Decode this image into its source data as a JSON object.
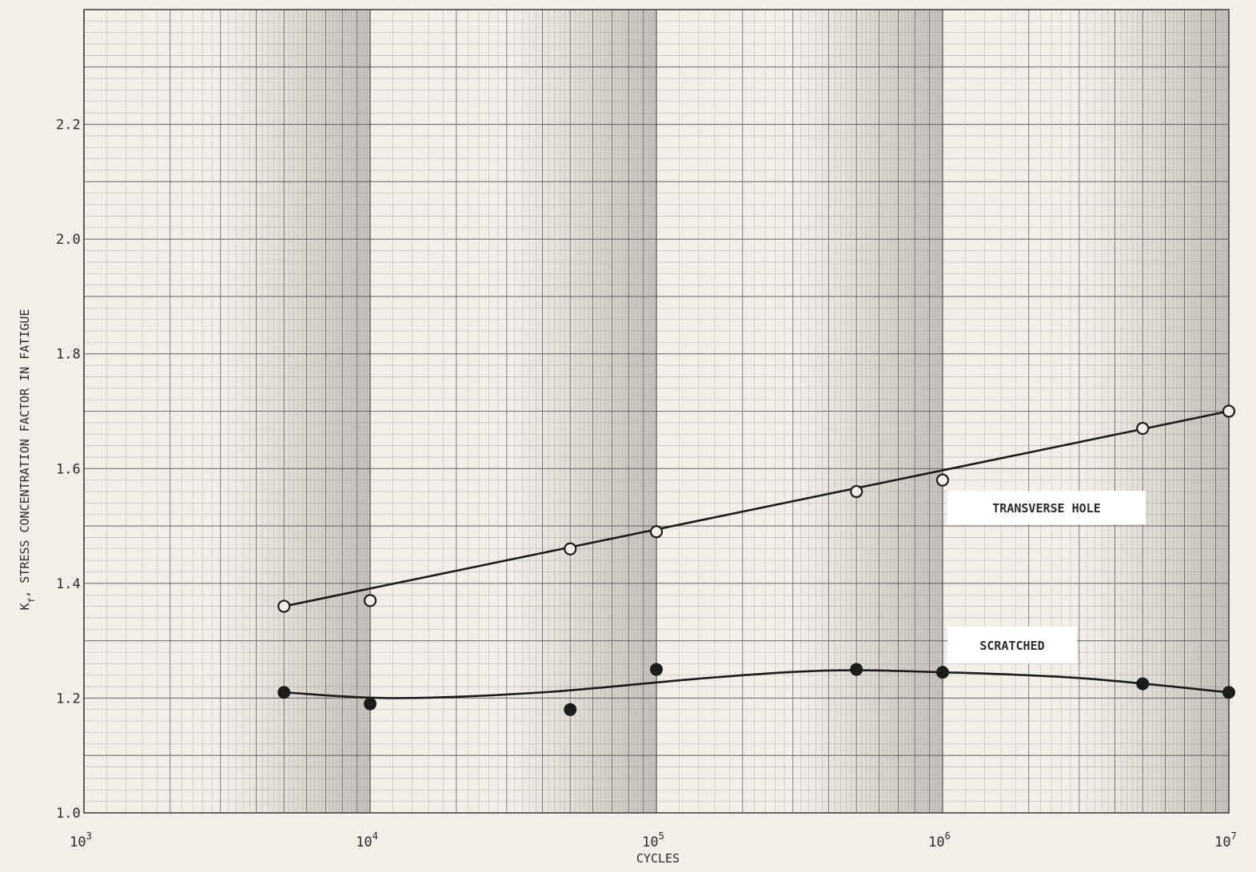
{
  "chart_data": {
    "type": "line",
    "title": "",
    "xlabel": "CYCLES",
    "ylabel": "K_f, STRESS CONCENTRATION FACTOR IN FATIGUE",
    "ylabel_parts": {
      "symbol_main": "K",
      "symbol_sub": "f",
      "text": ", STRESS CONCENTRATION FACTOR IN FATIGUE"
    },
    "x_scale": "log",
    "xlim": [
      1000,
      10000000
    ],
    "ylim": [
      1.0,
      2.4
    ],
    "grid": true,
    "x_ticks": [
      {
        "base": "10",
        "exp": "3",
        "value": 1000
      },
      {
        "base": "10",
        "exp": "4",
        "value": 10000
      },
      {
        "base": "10",
        "exp": "5",
        "value": 100000
      },
      {
        "base": "10",
        "exp": "6",
        "value": 1000000
      },
      {
        "base": "10",
        "exp": "7",
        "value": 10000000
      }
    ],
    "y_ticks": [
      {
        "label": "1.0",
        "value": 1.0
      },
      {
        "label": "1.2",
        "value": 1.2
      },
      {
        "label": "1.4",
        "value": 1.4
      },
      {
        "label": "1.6",
        "value": 1.6
      },
      {
        "label": "1.8",
        "value": 1.8
      },
      {
        "label": "2.0",
        "value": 2.0
      },
      {
        "label": "2.2",
        "value": 2.2
      }
    ],
    "series": [
      {
        "name": "TRANSVERSE HOLE",
        "marker": "open-circle",
        "points": [
          {
            "x": 5000,
            "y": 1.36
          },
          {
            "x": 10000,
            "y": 1.37
          },
          {
            "x": 50000,
            "y": 1.46
          },
          {
            "x": 100000,
            "y": 1.49
          },
          {
            "x": 500000,
            "y": 1.56
          },
          {
            "x": 1000000,
            "y": 1.58
          },
          {
            "x": 5000000,
            "y": 1.67
          },
          {
            "x": 10000000,
            "y": 1.7
          }
        ],
        "curve": [
          {
            "x": 5000,
            "y": 1.36
          },
          {
            "x": 10000000,
            "y": 1.7
          }
        ]
      },
      {
        "name": "SCRATCHED",
        "marker": "filled-circle",
        "points": [
          {
            "x": 5000,
            "y": 1.21
          },
          {
            "x": 10000,
            "y": 1.19
          },
          {
            "x": 50000,
            "y": 1.18
          },
          {
            "x": 100000,
            "y": 1.25
          },
          {
            "x": 500000,
            "y": 1.25
          },
          {
            "x": 1000000,
            "y": 1.245
          },
          {
            "x": 5000000,
            "y": 1.225
          },
          {
            "x": 10000000,
            "y": 1.21
          }
        ],
        "curve": [
          {
            "x": 5000,
            "y": 1.21
          },
          {
            "x": 12000,
            "y": 1.2
          },
          {
            "x": 40000,
            "y": 1.21
          },
          {
            "x": 150000,
            "y": 1.235
          },
          {
            "x": 400000,
            "y": 1.248
          },
          {
            "x": 1000000,
            "y": 1.245
          },
          {
            "x": 3000000,
            "y": 1.235
          },
          {
            "x": 10000000,
            "y": 1.21
          }
        ]
      }
    ]
  },
  "colors": {
    "paper": "#f2efe9",
    "grid_minor": "#9a9590",
    "grid_major": "#4a4a4a",
    "ink": "#1c1c1c",
    "shade": "#8c877f",
    "label_box": "#ffffff"
  }
}
